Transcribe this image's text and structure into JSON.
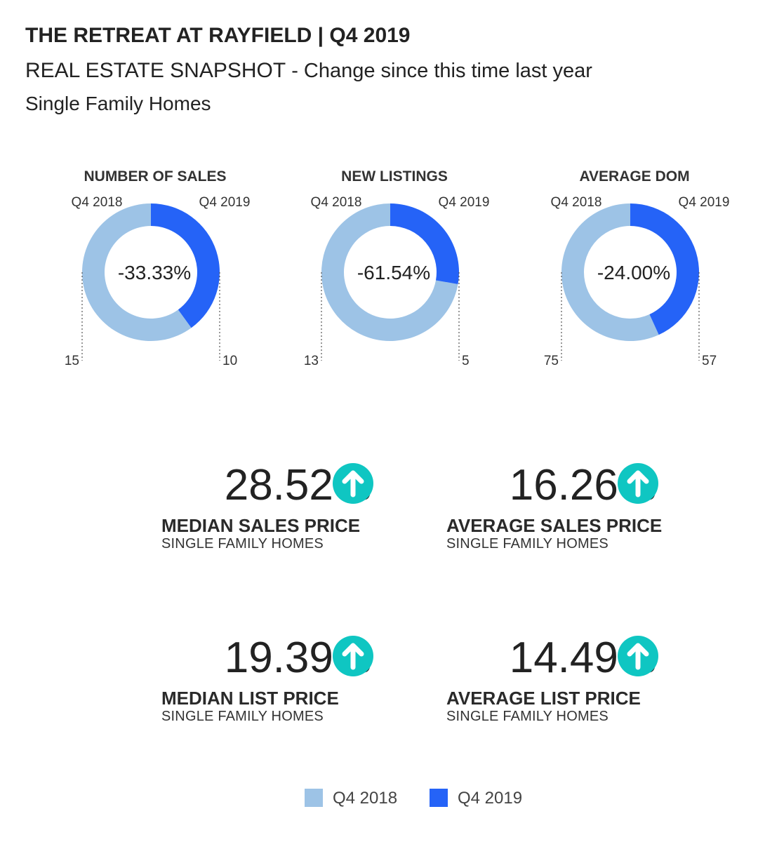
{
  "header": {
    "title": "THE RETREAT AT RAYFIELD | Q4 2019",
    "subtitle_main": "REAL ESTATE SNAPSHOT",
    "subtitle_detail": "- Change since this time last year",
    "subtitle2": "Single Family Homes"
  },
  "colors": {
    "q4_2018": "#9dc3e6",
    "q4_2019": "#2563f7",
    "up_arrow": "#0fc6c2"
  },
  "chart_data": [
    {
      "type": "pie",
      "title": "NUMBER OF SALES",
      "center_label": "-33.33%",
      "series": [
        {
          "name": "Q4 2018",
          "value": 15
        },
        {
          "name": "Q4 2019",
          "value": 10
        }
      ]
    },
    {
      "type": "pie",
      "title": "NEW LISTINGS",
      "center_label": "-61.54%",
      "series": [
        {
          "name": "Q4 2018",
          "value": 13
        },
        {
          "name": "Q4 2019",
          "value": 5
        }
      ]
    },
    {
      "type": "pie",
      "title": "AVERAGE DOM",
      "center_label": "-24.00%",
      "series": [
        {
          "name": "Q4 2018",
          "value": 75
        },
        {
          "name": "Q4 2019",
          "value": 57
        }
      ]
    }
  ],
  "kpis": [
    {
      "value": "28.52%",
      "label": "MEDIAN SALES PRICE",
      "sub": "SINGLE FAMILY HOMES",
      "icon": "arrow-up-circle-icon"
    },
    {
      "value": "16.26%",
      "label": "AVERAGE SALES PRICE",
      "sub": "SINGLE FAMILY HOMES",
      "icon": "arrow-up-circle-icon"
    },
    {
      "value": "19.39%",
      "label": "MEDIAN LIST PRICE",
      "sub": "SINGLE FAMILY HOMES",
      "icon": "arrow-up-circle-icon"
    },
    {
      "value": "14.49%",
      "label": "AVERAGE LIST PRICE",
      "sub": "SINGLE FAMILY HOMES",
      "icon": "arrow-up-circle-icon"
    }
  ],
  "legend": [
    {
      "label": "Q4 2018"
    },
    {
      "label": "Q4 2019"
    }
  ]
}
